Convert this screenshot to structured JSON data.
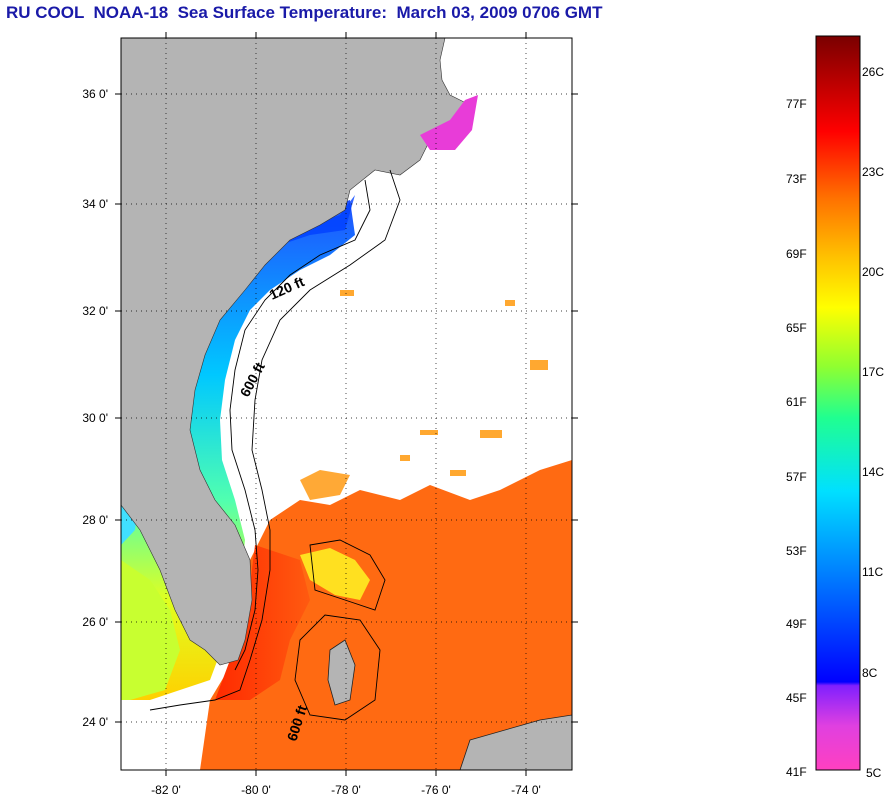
{
  "title": "RU COOL  NOAA-18  Sea Surface Temperature:  March 03, 2009 0706 GMT",
  "map": {
    "lat_labels": [
      "36 0'",
      "34 0'",
      "32 0'",
      "30 0'",
      "28 0'",
      "26 0'",
      "24 0'"
    ],
    "lon_labels": [
      "-82 0'",
      "-80 0'",
      "-78 0'",
      "-76 0'",
      "-74 0'"
    ],
    "depth_labels": [
      "120 ft",
      "600 ft",
      "600 ft"
    ],
    "land_color": "#b4b4b4",
    "no_data_color": "#ffffff"
  },
  "colorbar": {
    "fahrenheit_labels": [
      "77F",
      "73F",
      "69F",
      "65F",
      "61F",
      "57F",
      "53F",
      "49F",
      "45F",
      "41F"
    ],
    "celsius_labels": [
      "26C",
      "23C",
      "20C",
      "17C",
      "14C",
      "11C",
      "8C",
      "5C"
    ]
  }
}
